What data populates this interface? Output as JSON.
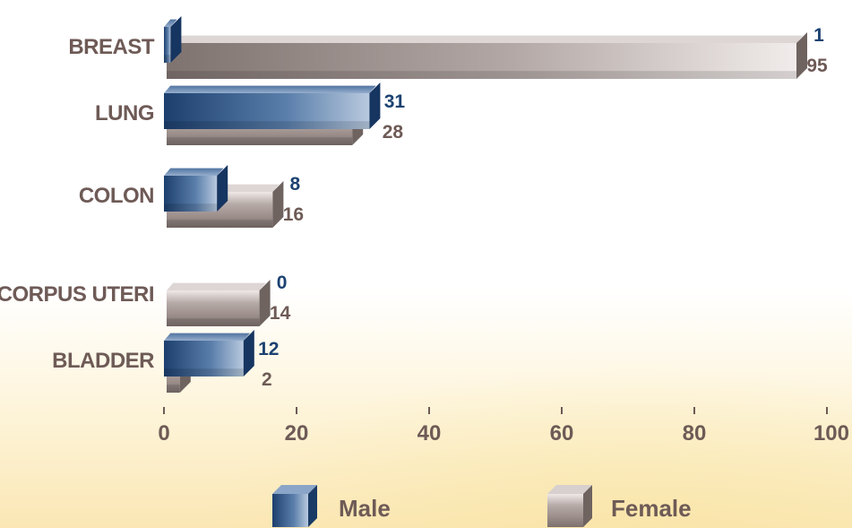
{
  "chart_data": {
    "type": "bar",
    "orientation": "horizontal",
    "categories": [
      "BREAST",
      "LUNG",
      "COLON",
      "CORPUS UTERI",
      "BLADDER"
    ],
    "series": [
      {
        "name": "Male",
        "values": [
          1,
          31,
          8,
          0,
          12
        ],
        "color": "#1c4271"
      },
      {
        "name": "Female",
        "values": [
          95,
          28,
          16,
          14,
          2
        ],
        "color": "#8a7d7a"
      }
    ],
    "x_ticks": [
      "0",
      "20",
      "40",
      "60",
      "80",
      "100"
    ],
    "xlim": [
      0,
      100
    ],
    "legend_position": "bottom",
    "grid": false
  },
  "legend": {
    "male_label": "Male",
    "female_label": "Female"
  }
}
